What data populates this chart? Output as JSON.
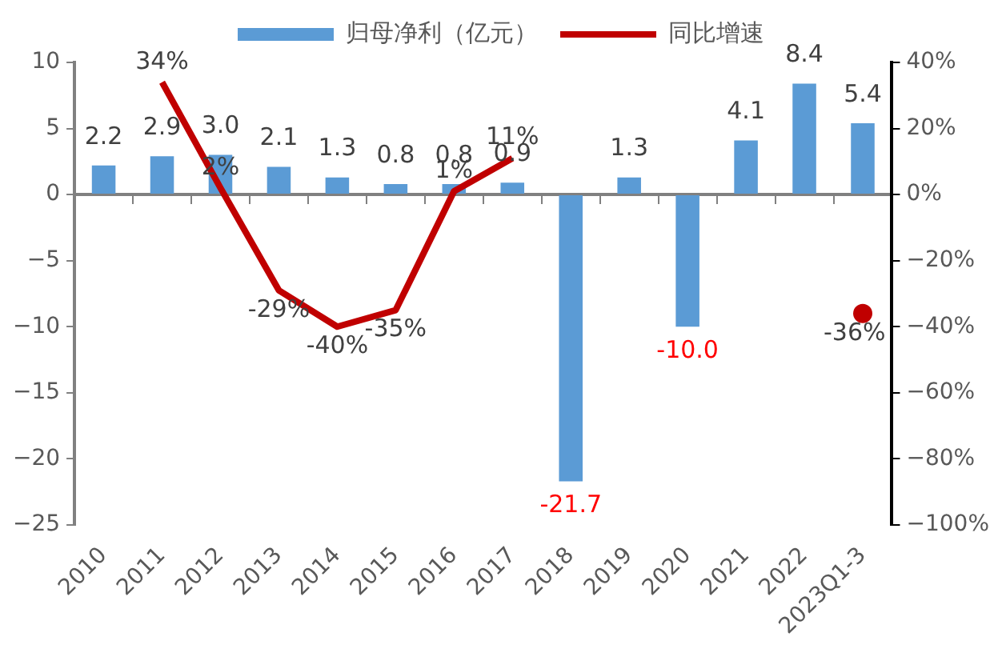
{
  "chart_data": {
    "type": "bar",
    "categories": [
      "2010",
      "2011",
      "2012",
      "2013",
      "2014",
      "2015",
      "2016",
      "2017",
      "2018",
      "2019",
      "2020",
      "2021",
      "2022",
      "2023Q1-3"
    ],
    "series": [
      {
        "name": "归母净利（亿元）",
        "color": "#5b9bd5",
        "values": [
          2.2,
          2.9,
          3.0,
          2.1,
          1.3,
          0.8,
          0.8,
          0.9,
          -21.7,
          1.3,
          -10.0,
          4.1,
          8.4,
          5.4
        ],
        "value_labels": [
          "2.2",
          "2.9",
          "3.0",
          "2.1",
          "1.3",
          "0.8",
          "0.8",
          "0.9",
          "-21.7",
          "1.3",
          "-10.0",
          "4.1",
          "8.4",
          "5.4"
        ]
      },
      {
        "name": "同比增速",
        "type": "line",
        "axis": "y2",
        "color": "#c00000",
        "values": [
          null,
          34,
          2,
          -29,
          -40,
          -35,
          1,
          11,
          null,
          null,
          null,
          null,
          null,
          -36
        ],
        "value_labels": [
          null,
          "34%",
          "2%",
          "-29%",
          "-40%",
          "-35%",
          "1%",
          "11%",
          null,
          null,
          null,
          null,
          null,
          "-36%"
        ]
      }
    ],
    "ylim": [
      -25,
      10
    ],
    "yticks": [
      {
        "value": -25,
        "label": "−25"
      },
      {
        "value": -20,
        "label": "−20"
      },
      {
        "value": -15,
        "label": "−15"
      },
      {
        "value": -10,
        "label": "−10"
      },
      {
        "value": -5,
        "label": "−5"
      },
      0,
      5,
      10
    ],
    "y2lim": [
      -100,
      40
    ],
    "y2ticks": [
      {
        "value": -100,
        "label": "−100%"
      },
      {
        "value": -80,
        "label": "−80%"
      },
      {
        "value": -60,
        "label": "−60%"
      },
      {
        "value": -40,
        "label": "−40%"
      },
      {
        "value": -20,
        "label": "−20%"
      },
      {
        "value": 0,
        "label": "0%"
      },
      {
        "value": 20,
        "label": "20%"
      },
      {
        "value": 40,
        "label": "40%"
      }
    ],
    "legend": "top",
    "marker": "none",
    "line_style": "solid"
  }
}
